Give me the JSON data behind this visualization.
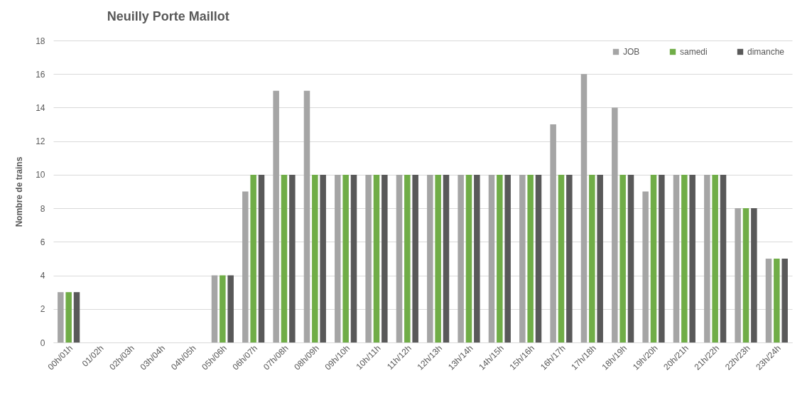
{
  "chart_data": {
    "type": "bar",
    "title": "Neuilly Porte Maillot",
    "ylabel": "Nombre de trains",
    "categories": [
      "00h/01h",
      "01/02h",
      "02h/03h",
      "03h/04h",
      "04h/05h",
      "05h/06h",
      "06h/07h",
      "07h/08h",
      "08h/09h",
      "09h/10h",
      "10h/11h",
      "11h/12h",
      "12h/13h",
      "13h/14h",
      "14h/15h",
      "15h/16h",
      "16h/17h",
      "17h/18h",
      "18h/19h",
      "19h/20h",
      "20h/21h",
      "21h/22h",
      "22h/23h",
      "23h/24h"
    ],
    "series": [
      {
        "name": "JOB",
        "color": "#a5a5a5",
        "values": [
          3,
          0,
          0,
          0,
          0,
          4,
          9,
          15,
          15,
          10,
          10,
          10,
          10,
          10,
          10,
          10,
          13,
          16,
          14,
          9,
          10,
          10,
          8,
          5
        ]
      },
      {
        "name": "samedi",
        "color": "#70ad47",
        "values": [
          3,
          0,
          0,
          0,
          0,
          4,
          10,
          10,
          10,
          10,
          10,
          10,
          10,
          10,
          10,
          10,
          10,
          10,
          10,
          10,
          10,
          10,
          8,
          5
        ]
      },
      {
        "name": "dimanche",
        "color": "#595959",
        "values": [
          3,
          0,
          0,
          0,
          0,
          4,
          10,
          10,
          10,
          10,
          10,
          10,
          10,
          10,
          10,
          10,
          10,
          10,
          10,
          10,
          10,
          10,
          8,
          5
        ]
      }
    ],
    "ylim": [
      0,
      18
    ],
    "yticks": [
      0,
      2,
      4,
      6,
      8,
      10,
      12,
      14,
      16,
      18
    ],
    "grid": "y",
    "legend": "top right"
  }
}
